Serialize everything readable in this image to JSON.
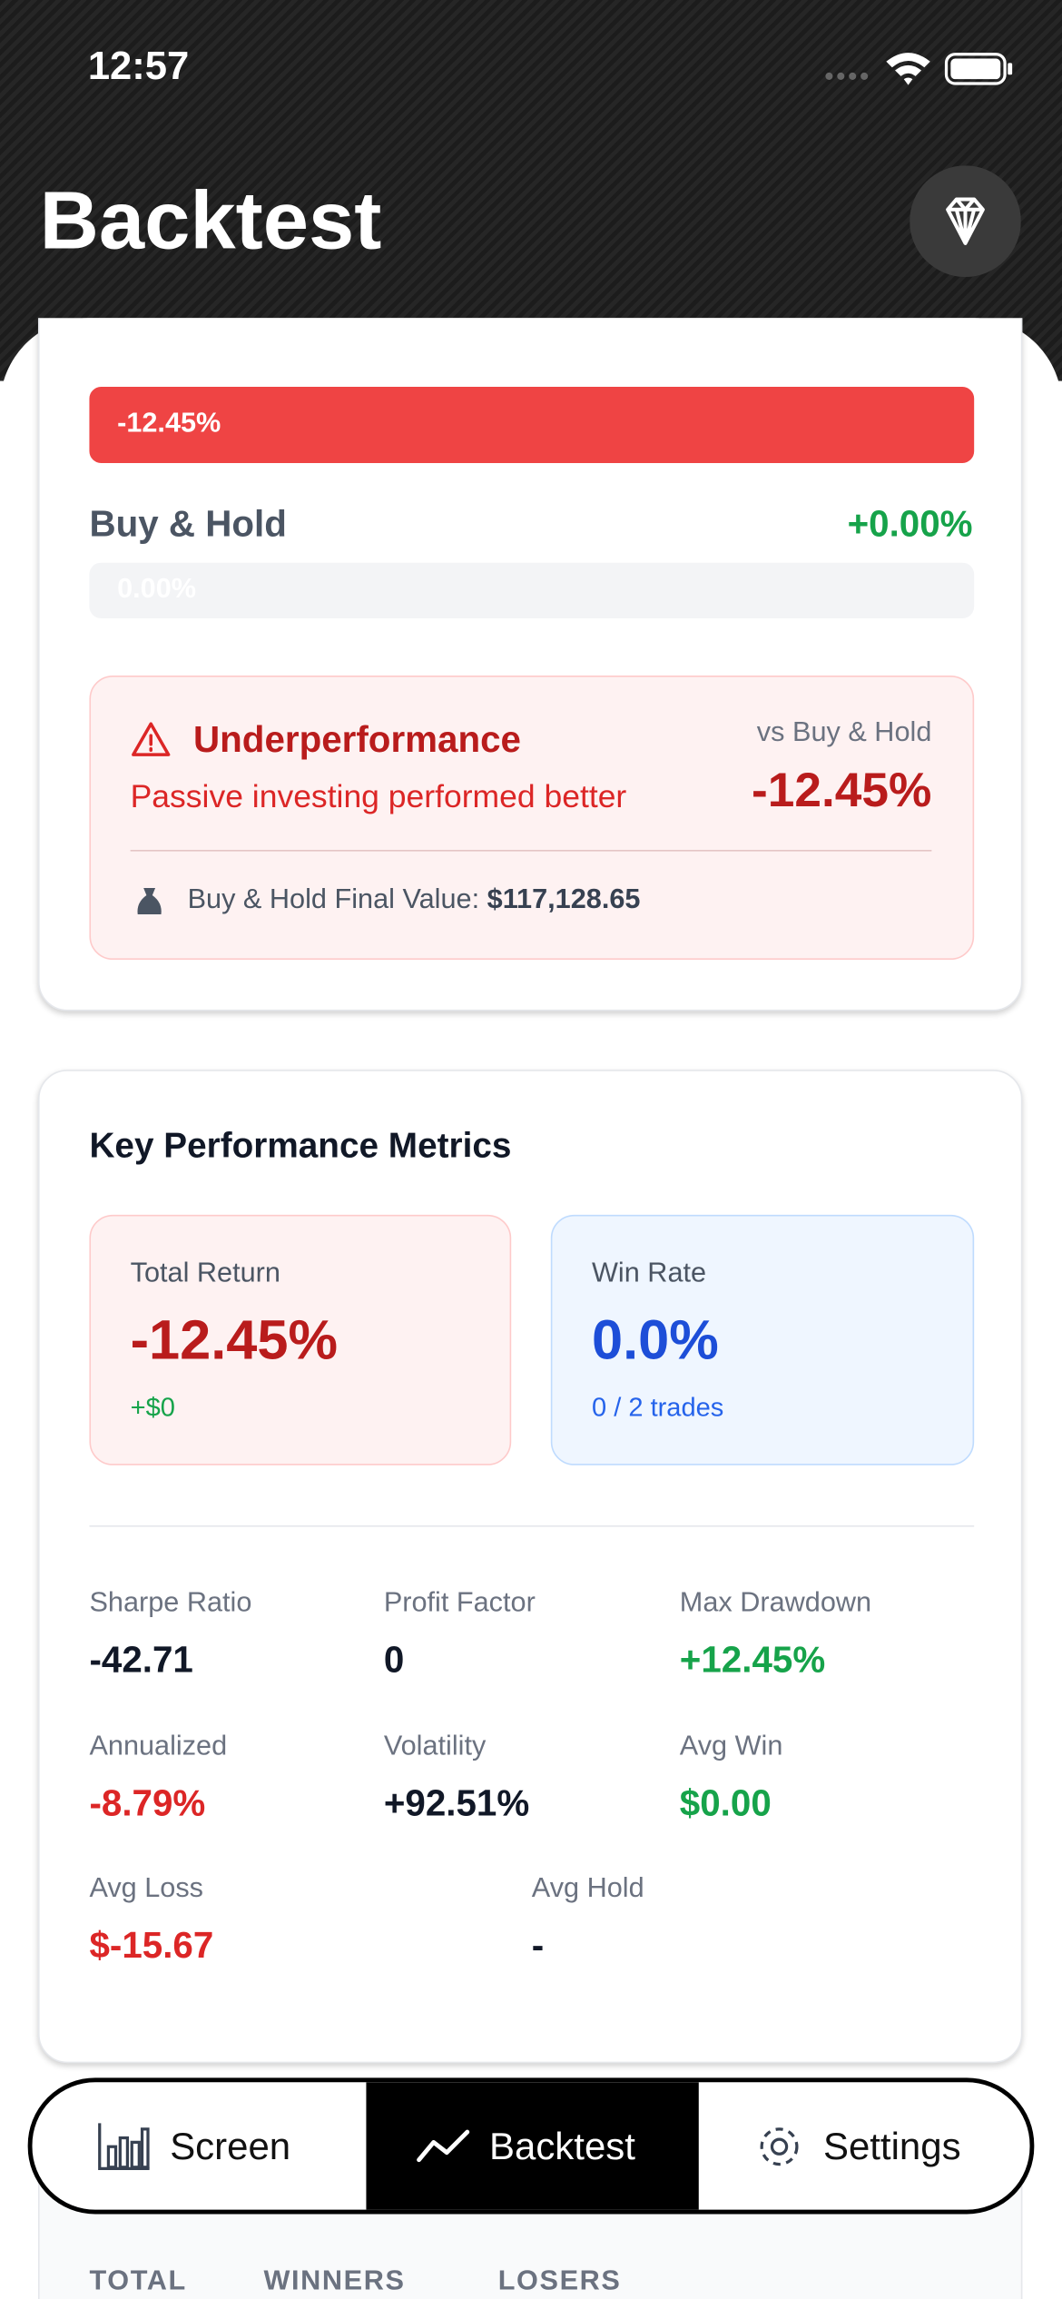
{
  "status_bar": {
    "time": "12:57"
  },
  "header": {
    "title": "Backtest"
  },
  "comparison": {
    "strategy_bar_label": "-12.45%",
    "buy_hold_label": "Buy & Hold",
    "buy_hold_value": "+0.00%",
    "buy_hold_bar_label": "0.00%"
  },
  "alert": {
    "title": "Underperformance",
    "message": "Passive investing performed better",
    "vs_label": "vs Buy & Hold",
    "vs_value": "-12.45%",
    "final_value_label": "Buy & Hold Final Value:",
    "final_value": "$117,128.65"
  },
  "metrics": {
    "title": "Key Performance Metrics",
    "total_return": {
      "label": "Total Return",
      "value": "-12.45%",
      "sub": "+$0"
    },
    "win_rate": {
      "label": "Win Rate",
      "value": "0.0%",
      "sub": "0 / 2 trades"
    },
    "items": [
      {
        "label": "Sharpe Ratio",
        "value": "-42.71"
      },
      {
        "label": "Profit Factor",
        "value": "0"
      },
      {
        "label": "Max Drawdown",
        "value": "+12.45%"
      },
      {
        "label": "Annualized",
        "value": "-8.79%"
      },
      {
        "label": "Volatility",
        "value": "+92.51%"
      },
      {
        "label": "Avg Win",
        "value": "$0.00"
      },
      {
        "label": "Avg Loss",
        "value": "$-15.67"
      },
      {
        "label": "Avg Hold",
        "value": "-"
      }
    ]
  },
  "trades": {
    "columns": [
      "TOTAL",
      "WINNERS",
      "LOSERS"
    ]
  },
  "nav": {
    "tabs": [
      "Screen",
      "Backtest",
      "Settings"
    ]
  }
}
